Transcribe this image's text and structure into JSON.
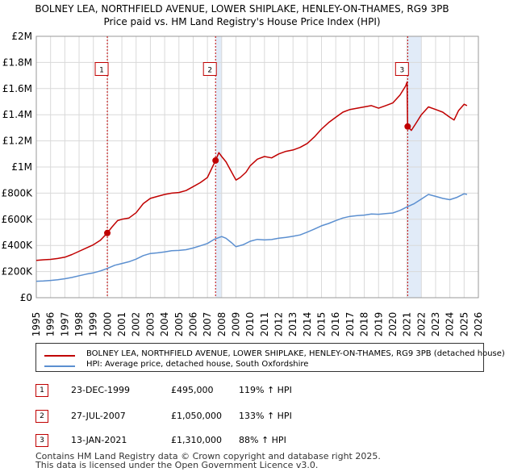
{
  "chart_data": {
    "type": "line",
    "title": "BOLNEY LEA, NORTHFIELD AVENUE, LOWER SHIPLAKE, HENLEY-ON-THAMES, RG9 3PB",
    "subtitle": "Price paid vs. HM Land Registry's House Price Index (HPI)",
    "xlim": [
      1995,
      2026
    ],
    "ylim": [
      0,
      2000000
    ],
    "x_ticks": [
      "1995",
      "1996",
      "1997",
      "1998",
      "1999",
      "2000",
      "2001",
      "2002",
      "2003",
      "2004",
      "2005",
      "2006",
      "2007",
      "2008",
      "2009",
      "2010",
      "2011",
      "2012",
      "2013",
      "2014",
      "2015",
      "2016",
      "2017",
      "2018",
      "2019",
      "2020",
      "2021",
      "2022",
      "2023",
      "2024",
      "2025",
      "2026"
    ],
    "y_ticks": [
      {
        "value": 0,
        "label": "£0"
      },
      {
        "value": 200000,
        "label": "£200K"
      },
      {
        "value": 400000,
        "label": "£400K"
      },
      {
        "value": 600000,
        "label": "£600K"
      },
      {
        "value": 800000,
        "label": "£800K"
      },
      {
        "value": 1000000,
        "label": "£1M"
      },
      {
        "value": 1200000,
        "label": "£1.2M"
      },
      {
        "value": 1400000,
        "label": "£1.4M"
      },
      {
        "value": 1600000,
        "label": "£1.6M"
      },
      {
        "value": 1800000,
        "label": "£1.8M"
      },
      {
        "value": 2000000,
        "label": "£2M"
      }
    ],
    "grid": true,
    "series": [
      {
        "name": "BOLNEY LEA, NORTHFIELD AVENUE, LOWER SHIPLAKE, HENLEY-ON-THAMES, RG9 3PB (detached house)",
        "color": "#c00000",
        "points": [
          [
            1995.0,
            285000
          ],
          [
            1995.5,
            290000
          ],
          [
            1996.0,
            293000
          ],
          [
            1996.5,
            300000
          ],
          [
            1997.0,
            310000
          ],
          [
            1997.5,
            330000
          ],
          [
            1998.0,
            355000
          ],
          [
            1998.5,
            380000
          ],
          [
            1999.0,
            405000
          ],
          [
            1999.5,
            440000
          ],
          [
            1999.98,
            495000
          ],
          [
            2000.3,
            540000
          ],
          [
            2000.7,
            590000
          ],
          [
            2001.0,
            600000
          ],
          [
            2001.5,
            610000
          ],
          [
            2002.0,
            650000
          ],
          [
            2002.5,
            720000
          ],
          [
            2003.0,
            760000
          ],
          [
            2003.5,
            775000
          ],
          [
            2004.0,
            790000
          ],
          [
            2004.5,
            800000
          ],
          [
            2005.0,
            805000
          ],
          [
            2005.5,
            820000
          ],
          [
            2006.0,
            850000
          ],
          [
            2006.5,
            880000
          ],
          [
            2007.0,
            920000
          ],
          [
            2007.57,
            1050000
          ],
          [
            2007.8,
            1110000
          ],
          [
            2008.0,
            1080000
          ],
          [
            2008.3,
            1040000
          ],
          [
            2008.7,
            960000
          ],
          [
            2009.0,
            900000
          ],
          [
            2009.3,
            920000
          ],
          [
            2009.7,
            960000
          ],
          [
            2010.0,
            1010000
          ],
          [
            2010.5,
            1060000
          ],
          [
            2011.0,
            1080000
          ],
          [
            2011.5,
            1070000
          ],
          [
            2012.0,
            1100000
          ],
          [
            2012.5,
            1120000
          ],
          [
            2013.0,
            1130000
          ],
          [
            2013.5,
            1150000
          ],
          [
            2014.0,
            1180000
          ],
          [
            2014.5,
            1230000
          ],
          [
            2015.0,
            1290000
          ],
          [
            2015.5,
            1340000
          ],
          [
            2016.0,
            1380000
          ],
          [
            2016.5,
            1420000
          ],
          [
            2017.0,
            1440000
          ],
          [
            2017.5,
            1450000
          ],
          [
            2018.0,
            1460000
          ],
          [
            2018.5,
            1470000
          ],
          [
            2019.0,
            1450000
          ],
          [
            2019.5,
            1470000
          ],
          [
            2020.0,
            1490000
          ],
          [
            2020.5,
            1550000
          ],
          [
            2020.9,
            1620000
          ],
          [
            2021.0,
            1650000
          ],
          [
            2021.04,
            1310000
          ],
          [
            2021.3,
            1280000
          ],
          [
            2021.6,
            1330000
          ],
          [
            2022.0,
            1400000
          ],
          [
            2022.5,
            1460000
          ],
          [
            2023.0,
            1440000
          ],
          [
            2023.5,
            1420000
          ],
          [
            2024.0,
            1380000
          ],
          [
            2024.3,
            1360000
          ],
          [
            2024.6,
            1430000
          ],
          [
            2025.0,
            1480000
          ],
          [
            2025.2,
            1470000
          ]
        ]
      },
      {
        "name": "HPI: Average price, detached house, South Oxfordshire",
        "color": "#5b8fd0",
        "points": [
          [
            1995.0,
            126000
          ],
          [
            1995.5,
            128000
          ],
          [
            1996.0,
            132000
          ],
          [
            1996.5,
            137000
          ],
          [
            1997.0,
            145000
          ],
          [
            1997.5,
            155000
          ],
          [
            1998.0,
            168000
          ],
          [
            1998.5,
            180000
          ],
          [
            1999.0,
            190000
          ],
          [
            1999.5,
            205000
          ],
          [
            2000.0,
            225000
          ],
          [
            2000.5,
            248000
          ],
          [
            2001.0,
            262000
          ],
          [
            2001.5,
            275000
          ],
          [
            2002.0,
            295000
          ],
          [
            2002.5,
            322000
          ],
          [
            2003.0,
            338000
          ],
          [
            2003.5,
            343000
          ],
          [
            2004.0,
            350000
          ],
          [
            2004.5,
            360000
          ],
          [
            2005.0,
            362000
          ],
          [
            2005.5,
            367000
          ],
          [
            2006.0,
            380000
          ],
          [
            2006.5,
            397000
          ],
          [
            2007.0,
            415000
          ],
          [
            2007.5,
            448000
          ],
          [
            2008.0,
            468000
          ],
          [
            2008.3,
            455000
          ],
          [
            2008.7,
            420000
          ],
          [
            2009.0,
            390000
          ],
          [
            2009.5,
            405000
          ],
          [
            2010.0,
            432000
          ],
          [
            2010.5,
            446000
          ],
          [
            2011.0,
            442000
          ],
          [
            2011.5,
            445000
          ],
          [
            2012.0,
            455000
          ],
          [
            2012.5,
            462000
          ],
          [
            2013.0,
            470000
          ],
          [
            2013.5,
            480000
          ],
          [
            2014.0,
            502000
          ],
          [
            2014.5,
            525000
          ],
          [
            2015.0,
            550000
          ],
          [
            2015.5,
            568000
          ],
          [
            2016.0,
            590000
          ],
          [
            2016.5,
            610000
          ],
          [
            2017.0,
            622000
          ],
          [
            2017.5,
            628000
          ],
          [
            2018.0,
            632000
          ],
          [
            2018.5,
            640000
          ],
          [
            2019.0,
            638000
          ],
          [
            2019.5,
            643000
          ],
          [
            2020.0,
            648000
          ],
          [
            2020.5,
            668000
          ],
          [
            2021.0,
            695000
          ],
          [
            2021.5,
            720000
          ],
          [
            2022.0,
            755000
          ],
          [
            2022.5,
            790000
          ],
          [
            2023.0,
            775000
          ],
          [
            2023.5,
            760000
          ],
          [
            2024.0,
            750000
          ],
          [
            2024.5,
            768000
          ],
          [
            2025.0,
            795000
          ],
          [
            2025.2,
            790000
          ]
        ]
      }
    ],
    "sales": [
      {
        "label": "1",
        "x": 1999.98,
        "value": 495000
      },
      {
        "label": "2",
        "x": 2007.57,
        "value": 1050000
      },
      {
        "label": "3",
        "x": 2021.04,
        "value": 1310000
      }
    ],
    "annotation_y": 1750000,
    "colors": {
      "price_line": "#c00000",
      "hpi_line": "#5b8fd0",
      "shade": "#dce7f7",
      "marker_border": "#c00000"
    }
  },
  "legend": {
    "items": [
      {
        "label": "BOLNEY LEA, NORTHFIELD AVENUE, LOWER SHIPLAKE, HENLEY-ON-THAMES, RG9 3PB (detached house)",
        "color": "#c00000"
      },
      {
        "label": "HPI: Average price, detached house, South Oxfordshire",
        "color": "#5b8fd0"
      }
    ]
  },
  "sales_table": [
    {
      "num": "1",
      "date": "23-DEC-1999",
      "price": "£495,000",
      "pct": "119% ↑ HPI"
    },
    {
      "num": "2",
      "date": "27-JUL-2007",
      "price": "£1,050,000",
      "pct": "133% ↑ HPI"
    },
    {
      "num": "3",
      "date": "13-JAN-2021",
      "price": "£1,310,000",
      "pct": "88% ↑ HPI"
    }
  ],
  "footer": {
    "line1": "Contains HM Land Registry data © Crown copyright and database right 2025.",
    "line2": "This data is licensed under the Open Government Licence v3.0."
  }
}
